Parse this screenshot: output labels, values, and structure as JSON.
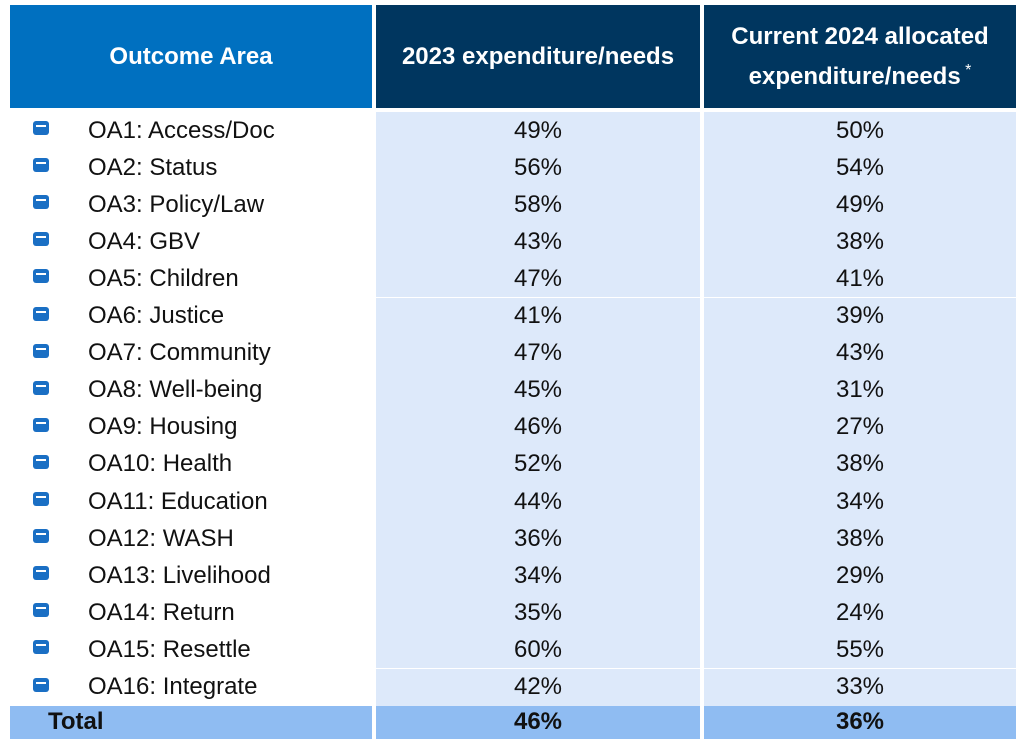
{
  "table": {
    "header": [
      "Outcome Area",
      "2023 expenditure/needs",
      "Current 2024 allocated expenditure/needs"
    ],
    "header_note": "*",
    "rows": [
      [
        "OA1: Access/Doc",
        "49%",
        "50%"
      ],
      [
        "OA2: Status",
        "56%",
        "54%"
      ],
      [
        "OA3: Policy/Law",
        "58%",
        "49%"
      ],
      [
        "OA4: GBV",
        "43%",
        "38%"
      ],
      [
        "OA5: Children",
        "47%",
        "41%"
      ],
      [
        "OA6: Justice",
        "41%",
        "39%"
      ],
      [
        "OA7: Community",
        "47%",
        "43%"
      ],
      [
        "OA8: Well-being",
        "45%",
        "31%"
      ],
      [
        "OA9: Housing",
        "46%",
        "27%"
      ],
      [
        "OA10: Health",
        "52%",
        "38%"
      ],
      [
        "OA11: Education",
        "44%",
        "34%"
      ],
      [
        "OA12: WASH",
        "36%",
        "38%"
      ],
      [
        "OA13: Livelihood",
        "34%",
        "29%"
      ],
      [
        "OA14: Return",
        "35%",
        "24%"
      ],
      [
        "OA15: Resettle",
        "60%",
        "55%"
      ],
      [
        "OA16: Integrate",
        "42%",
        "33%"
      ]
    ],
    "total": [
      "Total",
      "46%",
      "36%"
    ]
  }
}
